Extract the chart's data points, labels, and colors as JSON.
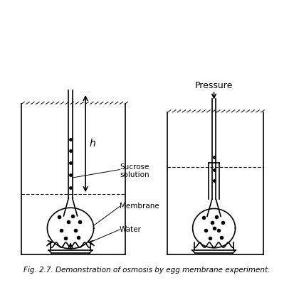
{
  "title": "Fig. 2.7. Demonstration of osmosis by egg membrane experiment.",
  "background_color": "#ffffff",
  "line_color": "#000000",
  "fig_width": 4.13,
  "fig_height": 4.08,
  "dpi": 100,
  "labels": {
    "sucrose_solution": "Sucrose\nsolution",
    "membrane": "Membrane",
    "water": "Water",
    "h_label": "h",
    "pressure": "Pressure"
  }
}
